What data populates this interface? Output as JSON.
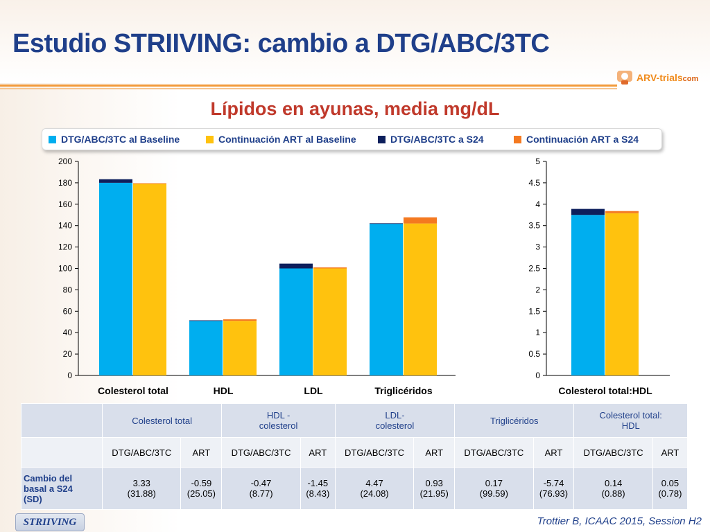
{
  "title": "Estudio STRIIVING: cambio a DTG/ABC/3TC",
  "logo": {
    "main": "ARV-trials",
    "suffix": "com"
  },
  "subtitle": "Lípidos en ayunas, media mg/dL",
  "legend": [
    {
      "label": "DTG/ABC/3TC al Baseline",
      "color": "#00aeef"
    },
    {
      "label": "Continuación ART al Baseline",
      "color": "#ffc20e"
    },
    {
      "label": "DTG/ABC/3TC a S24",
      "color": "#0d1f5c"
    },
    {
      "label": "Continuación ART a S24",
      "color": "#f47920"
    }
  ],
  "chart_data": [
    {
      "type": "bar",
      "stacked": true,
      "categories": [
        "Colesterol total",
        "HDL",
        "LDL",
        "Triglicéridos"
      ],
      "ylim": [
        0,
        200
      ],
      "yticks": [
        0,
        20,
        40,
        60,
        80,
        100,
        120,
        140,
        160,
        180,
        200
      ],
      "groups": [
        {
          "baseline": [
            180,
            51,
            100,
            142
          ],
          "change": [
            3.33,
            0.47,
            4.47,
            0.17
          ],
          "base_color": "#00aeef",
          "change_color": "#0d1f5c"
        },
        {
          "baseline": [
            179,
            51,
            100,
            142
          ],
          "change": [
            0.59,
            1.45,
            0.93,
            5.74
          ],
          "base_color": "#ffc20e",
          "change_color": "#f47920"
        }
      ]
    },
    {
      "type": "bar",
      "stacked": true,
      "categories": [
        "Colesterol total:HDL"
      ],
      "ylim": [
        0,
        5
      ],
      "yticks": [
        0,
        0.5,
        1,
        1.5,
        2,
        2.5,
        3,
        3.5,
        4,
        4.5,
        5
      ],
      "groups": [
        {
          "baseline": [
            3.75
          ],
          "change": [
            0.14
          ],
          "base_color": "#00aeef",
          "change_color": "#0d1f5c"
        },
        {
          "baseline": [
            3.79
          ],
          "change": [
            0.05
          ],
          "base_color": "#ffc20e",
          "change_color": "#f47920"
        }
      ]
    }
  ],
  "table": {
    "col_groups": [
      [
        "Colesterol total"
      ],
      [
        "HDL -",
        "colesterol"
      ],
      [
        "LDL-",
        "colesterol"
      ],
      [
        "Triglicéridos"
      ],
      [
        "Colesterol total:",
        "HDL"
      ]
    ],
    "sub_headers": [
      "DTG/ABC/3TC",
      "ART",
      "DTG/ABC/3TC",
      "ART",
      "DTG/ABC/3TC",
      "ART",
      "DTG/ABC/3TC",
      "ART",
      "DTG/ABC/3TC",
      "ART"
    ],
    "row_label": [
      "Cambio del",
      "basal a S24",
      "(SD)"
    ],
    "cells": [
      [
        "3.33",
        "(31.88)"
      ],
      [
        "-0.59",
        "(25.05)"
      ],
      [
        "-0.47",
        "(8.77)"
      ],
      [
        "-1.45",
        "(8.43)"
      ],
      [
        "4.47",
        "(24.08)"
      ],
      [
        "0.93",
        "(21.95)"
      ],
      [
        "0.17",
        "(99.59)"
      ],
      [
        "-5.74",
        "(76.93)"
      ],
      [
        "0.14",
        "(0.88)"
      ],
      [
        "0.05",
        "(0.78)"
      ]
    ]
  },
  "badge": "STRIIVING",
  "citation": "Trottier B, ICAAC 2015, Session H2"
}
